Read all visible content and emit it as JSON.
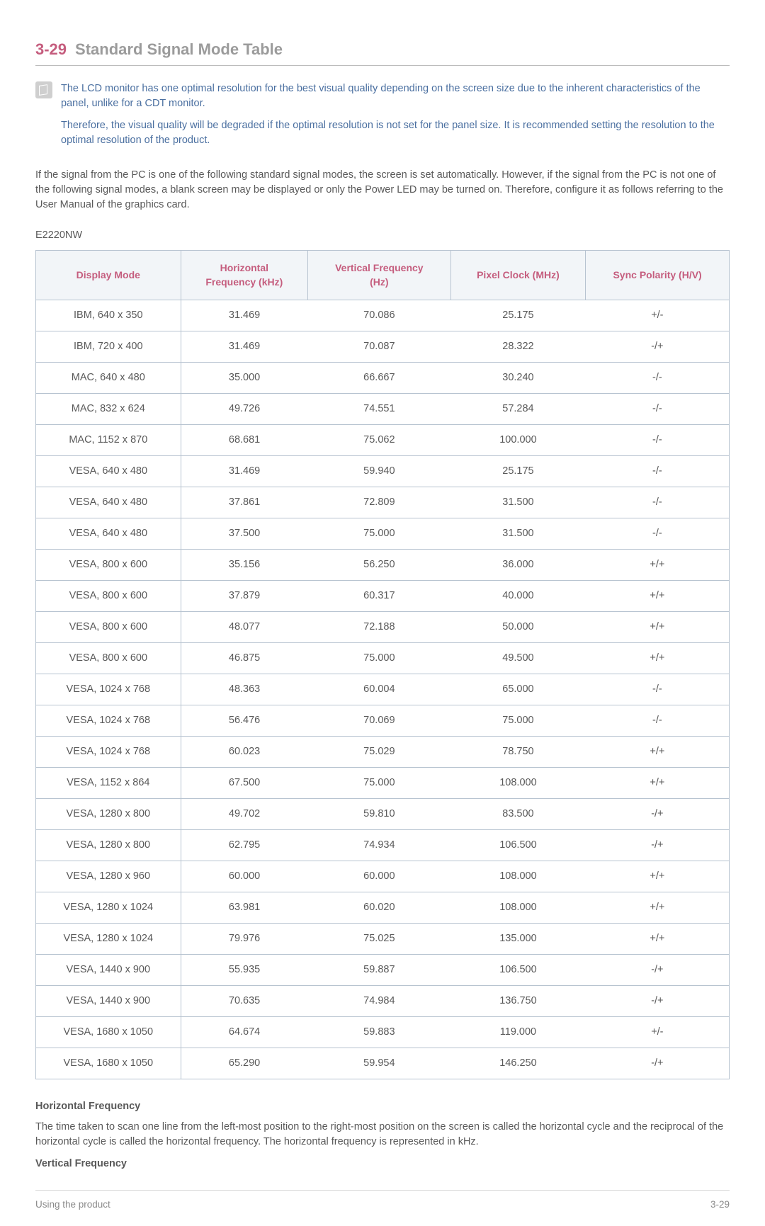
{
  "heading": {
    "number": "3-29",
    "title": "Standard Signal Mode Table"
  },
  "note": {
    "para1": "The LCD monitor has one optimal resolution for the best visual quality depending on the screen size due to the inherent characteristics of the panel, unlike for a CDT monitor.",
    "para2": "Therefore, the visual quality will be degraded if the optimal resolution is not set for the panel size. It is recommended setting the resolution to the optimal resolution of the product."
  },
  "body_para": "If the signal from the PC is one of the following standard signal modes, the screen is set automatically. However, if the signal from the PC is not one of the following signal modes, a blank screen may be displayed or only the Power LED may be turned on. Therefore, configure it as follows referring to the User Manual of the graphics card.",
  "model": "E2220NW",
  "table": {
    "columns": [
      "Display Mode",
      "Horizontal Frequency (kHz)",
      "Vertical Frequency (Hz)",
      "Pixel Clock (MHz)",
      "Sync Polarity (H/V)"
    ],
    "col_widths": [
      "20%",
      "20%",
      "20%",
      "20%",
      "20%"
    ],
    "header_color": "#c55d7e",
    "header_bg": "#f2f5f8",
    "border_color": "#b7c3d0",
    "rows": [
      [
        "IBM, 640 x 350",
        "31.469",
        "70.086",
        "25.175",
        "+/-"
      ],
      [
        "IBM, 720 x 400",
        "31.469",
        "70.087",
        "28.322",
        "-/+"
      ],
      [
        "MAC, 640 x 480",
        "35.000",
        "66.667",
        "30.240",
        "-/-"
      ],
      [
        "MAC, 832 x 624",
        "49.726",
        "74.551",
        "57.284",
        "-/-"
      ],
      [
        "MAC, 1152 x 870",
        "68.681",
        "75.062",
        "100.000",
        "-/-"
      ],
      [
        "VESA, 640 x 480",
        "31.469",
        "59.940",
        "25.175",
        "-/-"
      ],
      [
        "VESA, 640 x 480",
        "37.861",
        "72.809",
        "31.500",
        "-/-"
      ],
      [
        "VESA, 640 x 480",
        "37.500",
        "75.000",
        "31.500",
        "-/-"
      ],
      [
        "VESA, 800 x 600",
        "35.156",
        "56.250",
        "36.000",
        "+/+"
      ],
      [
        "VESA, 800 x 600",
        "37.879",
        "60.317",
        "40.000",
        "+/+"
      ],
      [
        "VESA, 800 x 600",
        "48.077",
        "72.188",
        "50.000",
        "+/+"
      ],
      [
        "VESA, 800 x 600",
        "46.875",
        "75.000",
        "49.500",
        "+/+"
      ],
      [
        "VESA, 1024 x 768",
        "48.363",
        "60.004",
        "65.000",
        "-/-"
      ],
      [
        "VESA, 1024 x 768",
        "56.476",
        "70.069",
        "75.000",
        "-/-"
      ],
      [
        "VESA, 1024 x 768",
        "60.023",
        "75.029",
        "78.750",
        "+/+"
      ],
      [
        "VESA, 1152 x 864",
        "67.500",
        "75.000",
        "108.000",
        "+/+"
      ],
      [
        "VESA, 1280 x 800",
        "49.702",
        "59.810",
        "83.500",
        "-/+"
      ],
      [
        "VESA, 1280 x 800",
        "62.795",
        "74.934",
        "106.500",
        "-/+"
      ],
      [
        "VESA, 1280 x 960",
        "60.000",
        "60.000",
        "108.000",
        "+/+"
      ],
      [
        "VESA, 1280 x 1024",
        "63.981",
        "60.020",
        "108.000",
        "+/+"
      ],
      [
        "VESA, 1280 x 1024",
        "79.976",
        "75.025",
        "135.000",
        "+/+"
      ],
      [
        "VESA, 1440 x 900",
        "55.935",
        "59.887",
        "106.500",
        "-/+"
      ],
      [
        "VESA, 1440 x 900",
        "70.635",
        "74.984",
        "136.750",
        "-/+"
      ],
      [
        "VESA, 1680 x 1050",
        "64.674",
        "59.883",
        "119.000",
        "+/-"
      ],
      [
        "VESA, 1680 x 1050",
        "65.290",
        "59.954",
        "146.250",
        "-/+"
      ]
    ]
  },
  "defs": {
    "h_title": "Horizontal Frequency",
    "h_body": "The time taken to scan one line from the left-most position to the right-most position on the screen is called the horizontal cycle and the reciprocal of the horizontal cycle is called the horizontal frequency. The horizontal frequency is represented in kHz.",
    "v_title": "Vertical Frequency"
  },
  "footer": {
    "left": "Using the product",
    "right": "3-29"
  }
}
